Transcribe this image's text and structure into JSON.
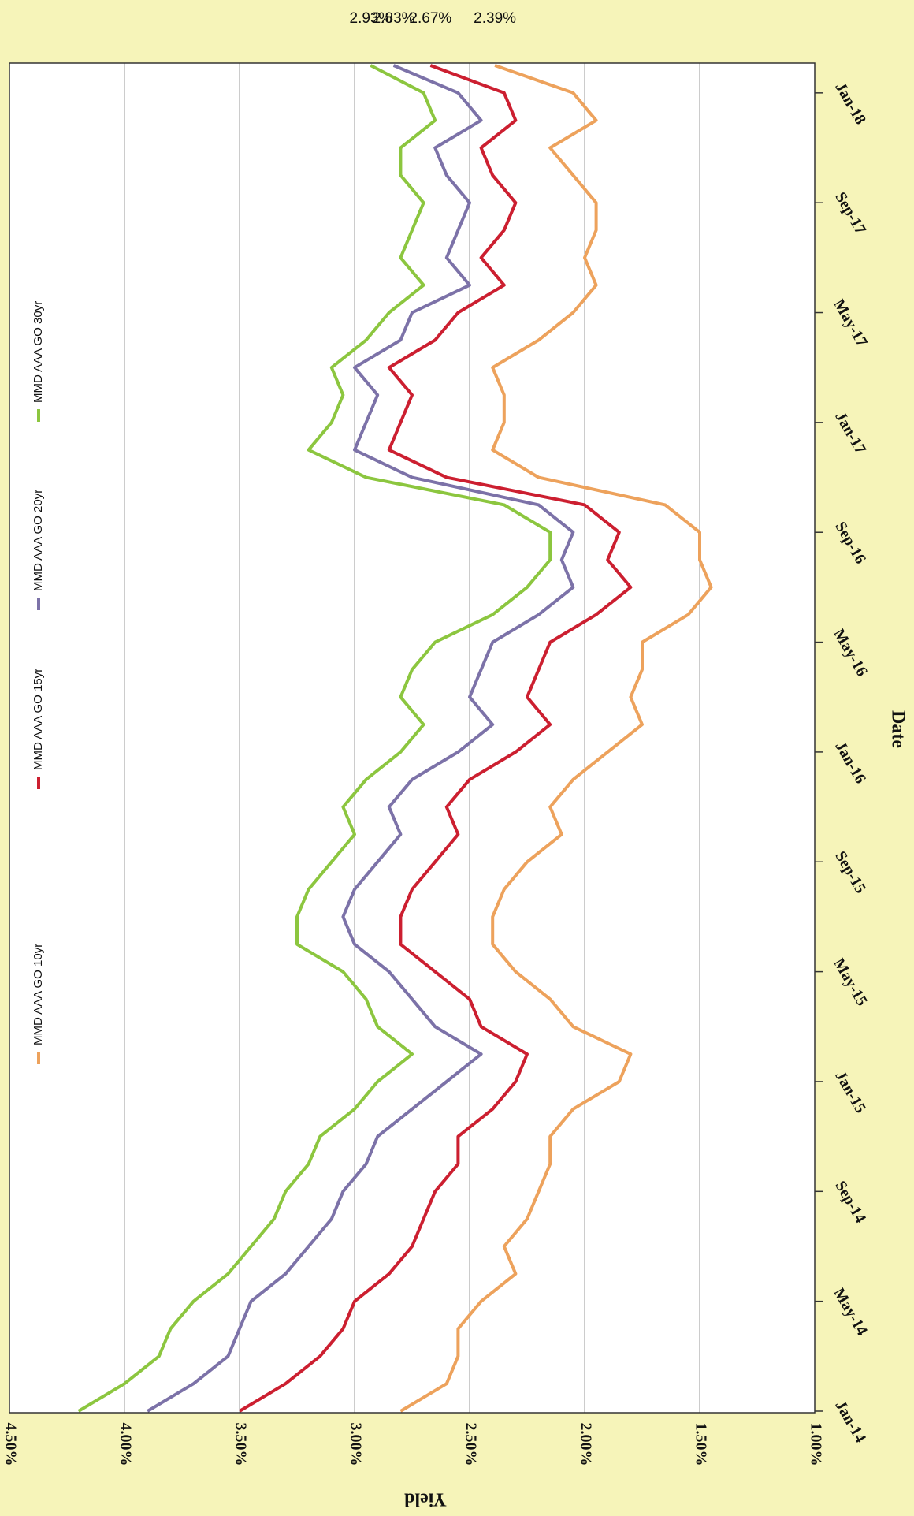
{
  "chart_data": {
    "type": "line",
    "x_label": "Date",
    "y_label": "Yield",
    "legend": "top",
    "grid": true,
    "xlim": [
      "2014-01",
      "2018-02"
    ],
    "ylim": [
      1.0,
      4.5
    ],
    "yticks": [
      {
        "value": 1.0,
        "label": "1.00%"
      },
      {
        "value": 1.5,
        "label": "1.50%"
      },
      {
        "value": 2.0,
        "label": "2.00%"
      },
      {
        "value": 2.5,
        "label": "2.50%"
      },
      {
        "value": 3.0,
        "label": "3.00%"
      },
      {
        "value": 3.5,
        "label": "3.50%"
      },
      {
        "value": 4.0,
        "label": "4.00%"
      },
      {
        "value": 4.5,
        "label": "4.50%"
      }
    ],
    "xticks": [
      {
        "value": "2014-01",
        "label": "Jan-14"
      },
      {
        "value": "2014-05",
        "label": "May-14"
      },
      {
        "value": "2014-09",
        "label": "Sep-14"
      },
      {
        "value": "2015-01",
        "label": "Jan-15"
      },
      {
        "value": "2015-05",
        "label": "May-15"
      },
      {
        "value": "2015-09",
        "label": "Sep-15"
      },
      {
        "value": "2016-01",
        "label": "Jan-16"
      },
      {
        "value": "2016-05",
        "label": "May-16"
      },
      {
        "value": "2016-09",
        "label": "Sep-16"
      },
      {
        "value": "2017-01",
        "label": "Jan-17"
      },
      {
        "value": "2017-05",
        "label": "May-17"
      },
      {
        "value": "2017-09",
        "label": "Sep-17"
      },
      {
        "value": "2018-01",
        "label": "Jan-18"
      }
    ],
    "x": [
      "2014-01",
      "2014-02",
      "2014-03",
      "2014-04",
      "2014-05",
      "2014-06",
      "2014-07",
      "2014-08",
      "2014-09",
      "2014-10",
      "2014-11",
      "2014-12",
      "2015-01",
      "2015-02",
      "2015-03",
      "2015-04",
      "2015-05",
      "2015-06",
      "2015-07",
      "2015-08",
      "2015-09",
      "2015-10",
      "2015-11",
      "2015-12",
      "2016-01",
      "2016-02",
      "2016-03",
      "2016-04",
      "2016-05",
      "2016-06",
      "2016-07",
      "2016-08",
      "2016-09",
      "2016-10",
      "2016-11",
      "2016-12",
      "2017-01",
      "2017-02",
      "2017-03",
      "2017-04",
      "2017-05",
      "2017-06",
      "2017-07",
      "2017-08",
      "2017-09",
      "2017-10",
      "2017-11",
      "2017-12",
      "2018-01",
      "2018-02"
    ],
    "series": [
      {
        "name": "MMD AAA GO 10yr",
        "color": "#eda25c",
        "end_label": "2.39%",
        "values": [
          2.8,
          2.6,
          2.55,
          2.55,
          2.45,
          2.3,
          2.35,
          2.25,
          2.2,
          2.15,
          2.15,
          2.05,
          1.85,
          1.8,
          2.05,
          2.15,
          2.3,
          2.4,
          2.4,
          2.35,
          2.25,
          2.1,
          2.15,
          2.05,
          1.9,
          1.75,
          1.8,
          1.75,
          1.75,
          1.55,
          1.45,
          1.5,
          1.5,
          1.65,
          2.2,
          2.4,
          2.35,
          2.35,
          2.4,
          2.2,
          2.05,
          1.95,
          2.0,
          1.95,
          1.95,
          2.05,
          2.15,
          1.95,
          2.05,
          2.39
        ]
      },
      {
        "name": "MMD AAA GO 15yr",
        "color": "#cc1f30",
        "end_label": "2.67%",
        "values": [
          3.5,
          3.3,
          3.15,
          3.05,
          3.0,
          2.85,
          2.75,
          2.7,
          2.65,
          2.55,
          2.55,
          2.4,
          2.3,
          2.25,
          2.45,
          2.5,
          2.65,
          2.8,
          2.8,
          2.75,
          2.65,
          2.55,
          2.6,
          2.5,
          2.3,
          2.15,
          2.25,
          2.2,
          2.15,
          1.95,
          1.8,
          1.9,
          1.85,
          2.0,
          2.6,
          2.85,
          2.8,
          2.75,
          2.85,
          2.65,
          2.55,
          2.35,
          2.45,
          2.35,
          2.3,
          2.4,
          2.45,
          2.3,
          2.35,
          2.67
        ]
      },
      {
        "name": "MMD AAA GO 20yr",
        "color": "#7c72a8",
        "end_label": "2.83%",
        "values": [
          3.9,
          3.7,
          3.55,
          3.5,
          3.45,
          3.3,
          3.2,
          3.1,
          3.05,
          2.95,
          2.9,
          2.75,
          2.6,
          2.45,
          2.65,
          2.75,
          2.85,
          3.0,
          3.05,
          3.0,
          2.9,
          2.8,
          2.85,
          2.75,
          2.55,
          2.4,
          2.5,
          2.45,
          2.4,
          2.2,
          2.05,
          2.1,
          2.05,
          2.2,
          2.75,
          3.0,
          2.95,
          2.9,
          3.0,
          2.8,
          2.75,
          2.5,
          2.6,
          2.55,
          2.5,
          2.6,
          2.65,
          2.45,
          2.55,
          2.83
        ]
      },
      {
        "name": "MMD AAA GO 30yr",
        "color": "#8cc63f",
        "end_label": "2.93%",
        "values": [
          4.2,
          4.0,
          3.85,
          3.8,
          3.7,
          3.55,
          3.45,
          3.35,
          3.3,
          3.2,
          3.15,
          3.0,
          2.9,
          2.75,
          2.9,
          2.95,
          3.05,
          3.25,
          3.25,
          3.2,
          3.1,
          3.0,
          3.05,
          2.95,
          2.8,
          2.7,
          2.8,
          2.75,
          2.65,
          2.4,
          2.25,
          2.15,
          2.15,
          2.35,
          2.95,
          3.2,
          3.1,
          3.05,
          3.1,
          2.95,
          2.85,
          2.7,
          2.8,
          2.75,
          2.7,
          2.8,
          2.8,
          2.65,
          2.7,
          2.93
        ]
      }
    ]
  }
}
